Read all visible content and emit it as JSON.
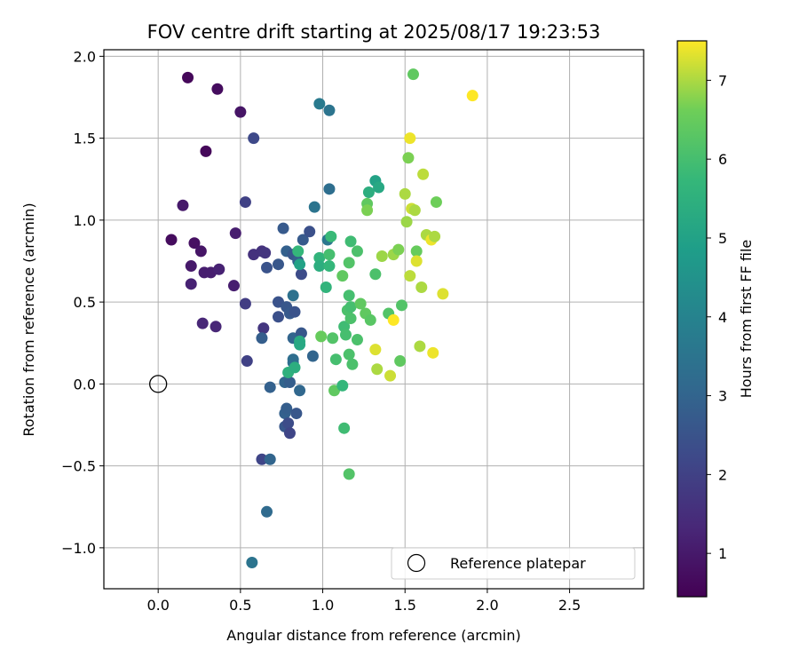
{
  "chart_data": {
    "type": "scatter",
    "title": "FOV centre drift starting at 2025/08/17 19:23:53",
    "xlabel": "Angular distance from reference (arcmin)",
    "ylabel": "Rotation from reference (arcmin)",
    "xlim": [
      -0.33,
      2.95
    ],
    "ylim": [
      -1.25,
      2.04
    ],
    "xticks": [
      0.0,
      0.5,
      1.0,
      1.5,
      2.0,
      2.5
    ],
    "xtick_labels": [
      "0.0",
      "0.5",
      "1.0",
      "1.5",
      "2.0",
      "2.5"
    ],
    "yticks": [
      -1.0,
      -0.5,
      0.0,
      0.5,
      1.0,
      1.5,
      2.0
    ],
    "ytick_labels": [
      "−1.0",
      "−0.5",
      "0.0",
      "0.5",
      "1.0",
      "1.5",
      "2.0"
    ],
    "grid": true,
    "colormap": "viridis",
    "colorbar": {
      "label": "Hours from first FF file",
      "range": [
        0.45,
        7.5
      ],
      "ticks": [
        1,
        2,
        3,
        4,
        5,
        6,
        7
      ],
      "tick_labels": [
        "1",
        "2",
        "3",
        "4",
        "5",
        "6",
        "7"
      ]
    },
    "legend": {
      "placement": "lower-right",
      "entries": [
        "Reference platepar"
      ]
    },
    "reference": {
      "name": "Reference platepar",
      "x": 0.0,
      "y": 0.0,
      "marker": "open-circle"
    },
    "points": [
      {
        "x": 0.18,
        "y": 1.87,
        "c": 0.6
      },
      {
        "x": 0.36,
        "y": 1.8,
        "c": 0.7
      },
      {
        "x": 0.29,
        "y": 1.42,
        "c": 0.6
      },
      {
        "x": 0.5,
        "y": 1.66,
        "c": 0.9
      },
      {
        "x": 0.15,
        "y": 1.09,
        "c": 1.0
      },
      {
        "x": 0.08,
        "y": 0.88,
        "c": 0.7
      },
      {
        "x": 0.22,
        "y": 0.86,
        "c": 0.8
      },
      {
        "x": 0.26,
        "y": 0.81,
        "c": 0.9
      },
      {
        "x": 0.2,
        "y": 0.72,
        "c": 1.0
      },
      {
        "x": 0.28,
        "y": 0.68,
        "c": 1.1
      },
      {
        "x": 0.32,
        "y": 0.68,
        "c": 1.1
      },
      {
        "x": 0.37,
        "y": 0.7,
        "c": 1.2
      },
      {
        "x": 0.2,
        "y": 0.61,
        "c": 1.2
      },
      {
        "x": 0.46,
        "y": 0.6,
        "c": 1.1
      },
      {
        "x": 0.47,
        "y": 0.92,
        "c": 1.1
      },
      {
        "x": 0.27,
        "y": 0.37,
        "c": 1.3
      },
      {
        "x": 0.35,
        "y": 0.35,
        "c": 1.3
      },
      {
        "x": 0.58,
        "y": 1.5,
        "c": 2.2
      },
      {
        "x": 0.53,
        "y": 1.11,
        "c": 2.0
      },
      {
        "x": 0.58,
        "y": 0.79,
        "c": 1.6
      },
      {
        "x": 0.63,
        "y": 0.81,
        "c": 1.6
      },
      {
        "x": 0.65,
        "y": 0.8,
        "c": 1.7
      },
      {
        "x": 0.53,
        "y": 0.49,
        "c": 1.9
      },
      {
        "x": 0.54,
        "y": 0.14,
        "c": 2.0
      },
      {
        "x": 0.64,
        "y": 0.34,
        "c": 1.7
      },
      {
        "x": 0.63,
        "y": 0.28,
        "c": 2.8
      },
      {
        "x": 0.66,
        "y": 0.71,
        "c": 2.5
      },
      {
        "x": 0.73,
        "y": 0.73,
        "c": 2.6
      },
      {
        "x": 0.76,
        "y": 0.95,
        "c": 2.7
      },
      {
        "x": 0.78,
        "y": 0.81,
        "c": 2.9
      },
      {
        "x": 0.82,
        "y": 0.79,
        "c": 2.6
      },
      {
        "x": 0.73,
        "y": 0.5,
        "c": 2.5
      },
      {
        "x": 0.78,
        "y": 0.47,
        "c": 2.6
      },
      {
        "x": 0.8,
        "y": 0.43,
        "c": 2.7
      },
      {
        "x": 0.83,
        "y": 0.44,
        "c": 2.5
      },
      {
        "x": 0.73,
        "y": 0.41,
        "c": 2.4
      },
      {
        "x": 0.82,
        "y": 0.54,
        "c": 3.4
      },
      {
        "x": 0.88,
        "y": 0.88,
        "c": 2.7
      },
      {
        "x": 0.92,
        "y": 0.93,
        "c": 2.4
      },
      {
        "x": 0.87,
        "y": 0.67,
        "c": 2.3
      },
      {
        "x": 0.85,
        "y": 0.75,
        "c": 2.9
      },
      {
        "x": 0.82,
        "y": 0.28,
        "c": 3.0
      },
      {
        "x": 0.87,
        "y": 0.31,
        "c": 2.6
      },
      {
        "x": 0.94,
        "y": 0.17,
        "c": 3.0
      },
      {
        "x": 0.98,
        "y": 1.71,
        "c": 3.7
      },
      {
        "x": 1.04,
        "y": 1.67,
        "c": 3.5
      },
      {
        "x": 0.95,
        "y": 1.08,
        "c": 3.5
      },
      {
        "x": 1.04,
        "y": 1.19,
        "c": 3.3
      },
      {
        "x": 1.03,
        "y": 0.88,
        "c": 3.6
      },
      {
        "x": 1.05,
        "y": 0.9,
        "c": 5.8
      },
      {
        "x": 0.68,
        "y": -0.02,
        "c": 2.9
      },
      {
        "x": 0.77,
        "y": 0.01,
        "c": 3.0
      },
      {
        "x": 0.8,
        "y": 0.01,
        "c": 2.8
      },
      {
        "x": 0.82,
        "y": 0.13,
        "c": 3.3
      },
      {
        "x": 0.82,
        "y": 0.15,
        "c": 3.3
      },
      {
        "x": 0.86,
        "y": -0.04,
        "c": 3.1
      },
      {
        "x": 0.77,
        "y": -0.18,
        "c": 2.9
      },
      {
        "x": 0.78,
        "y": -0.15,
        "c": 2.8
      },
      {
        "x": 0.84,
        "y": -0.18,
        "c": 2.6
      },
      {
        "x": 0.77,
        "y": -0.26,
        "c": 2.6
      },
      {
        "x": 0.79,
        "y": -0.24,
        "c": 2.3
      },
      {
        "x": 0.8,
        "y": -0.3,
        "c": 2.1
      },
      {
        "x": 0.63,
        "y": -0.46,
        "c": 2.1
      },
      {
        "x": 0.68,
        "y": -0.46,
        "c": 3.0
      },
      {
        "x": 0.66,
        "y": -0.78,
        "c": 3.2
      },
      {
        "x": 0.57,
        "y": -1.09,
        "c": 3.5
      },
      {
        "x": 0.79,
        "y": 0.07,
        "c": 5.5
      },
      {
        "x": 0.85,
        "y": 0.81,
        "c": 5.7
      },
      {
        "x": 0.86,
        "y": 0.73,
        "c": 5.0
      },
      {
        "x": 0.86,
        "y": 0.26,
        "c": 5.3
      },
      {
        "x": 0.86,
        "y": 0.24,
        "c": 5.2
      },
      {
        "x": 0.83,
        "y": 0.1,
        "c": 5.4
      },
      {
        "x": 0.98,
        "y": 0.77,
        "c": 5.6
      },
      {
        "x": 0.98,
        "y": 0.72,
        "c": 5.4
      },
      {
        "x": 0.99,
        "y": 0.29,
        "c": 6.5
      },
      {
        "x": 1.02,
        "y": 0.59,
        "c": 5.6
      },
      {
        "x": 1.04,
        "y": 0.79,
        "c": 6.0
      },
      {
        "x": 1.04,
        "y": 0.72,
        "c": 5.7
      },
      {
        "x": 1.06,
        "y": 0.28,
        "c": 6.2
      },
      {
        "x": 1.08,
        "y": 0.15,
        "c": 6.0
      },
      {
        "x": 1.07,
        "y": -0.04,
        "c": 6.4
      },
      {
        "x": 1.12,
        "y": -0.01,
        "c": 5.7
      },
      {
        "x": 1.13,
        "y": 0.35,
        "c": 5.9
      },
      {
        "x": 1.14,
        "y": 0.3,
        "c": 6.0
      },
      {
        "x": 1.15,
        "y": 0.45,
        "c": 6.1
      },
      {
        "x": 1.16,
        "y": 0.54,
        "c": 6.0
      },
      {
        "x": 1.17,
        "y": 0.47,
        "c": 6.0
      },
      {
        "x": 1.16,
        "y": 0.74,
        "c": 6.2
      },
      {
        "x": 1.17,
        "y": 0.87,
        "c": 5.9
      },
      {
        "x": 1.17,
        "y": 0.4,
        "c": 6.1
      },
      {
        "x": 1.16,
        "y": 0.18,
        "c": 6.1
      },
      {
        "x": 1.18,
        "y": 0.12,
        "c": 6.1
      },
      {
        "x": 1.13,
        "y": -0.27,
        "c": 5.9
      },
      {
        "x": 1.16,
        "y": -0.55,
        "c": 6.2
      },
      {
        "x": 1.12,
        "y": 0.66,
        "c": 6.4
      },
      {
        "x": 1.21,
        "y": 0.27,
        "c": 6.1
      },
      {
        "x": 1.21,
        "y": 0.81,
        "c": 6.1
      },
      {
        "x": 1.23,
        "y": 0.49,
        "c": 6.4
      },
      {
        "x": 1.26,
        "y": 0.43,
        "c": 6.4
      },
      {
        "x": 1.29,
        "y": 0.39,
        "c": 6.3
      },
      {
        "x": 1.28,
        "y": 1.17,
        "c": 5.4
      },
      {
        "x": 1.32,
        "y": 1.24,
        "c": 5.0
      },
      {
        "x": 1.34,
        "y": 1.2,
        "c": 5.2
      },
      {
        "x": 1.27,
        "y": 1.1,
        "c": 6.4
      },
      {
        "x": 1.27,
        "y": 1.06,
        "c": 6.7
      },
      {
        "x": 1.32,
        "y": 0.67,
        "c": 6.1
      },
      {
        "x": 1.36,
        "y": 0.78,
        "c": 6.9
      },
      {
        "x": 1.4,
        "y": 0.43,
        "c": 6.2
      },
      {
        "x": 1.43,
        "y": 0.79,
        "c": 6.9
      },
      {
        "x": 1.43,
        "y": 0.39,
        "c": 7.5
      },
      {
        "x": 1.46,
        "y": 0.82,
        "c": 6.7
      },
      {
        "x": 1.32,
        "y": 0.21,
        "c": 7.3
      },
      {
        "x": 1.33,
        "y": 0.09,
        "c": 7.0
      },
      {
        "x": 1.41,
        "y": 0.05,
        "c": 7.2
      },
      {
        "x": 1.47,
        "y": 0.14,
        "c": 6.4
      },
      {
        "x": 1.48,
        "y": 0.48,
        "c": 6.2
      },
      {
        "x": 1.5,
        "y": 1.16,
        "c": 7.0
      },
      {
        "x": 1.51,
        "y": 0.99,
        "c": 6.9
      },
      {
        "x": 1.52,
        "y": 1.38,
        "c": 6.7
      },
      {
        "x": 1.53,
        "y": 1.5,
        "c": 7.4
      },
      {
        "x": 1.54,
        "y": 1.07,
        "c": 7.2
      },
      {
        "x": 1.56,
        "y": 1.06,
        "c": 7.0
      },
      {
        "x": 1.53,
        "y": 0.66,
        "c": 7.1
      },
      {
        "x": 1.55,
        "y": 1.89,
        "c": 6.4
      },
      {
        "x": 1.57,
        "y": 0.81,
        "c": 6.5
      },
      {
        "x": 1.57,
        "y": 0.75,
        "c": 7.3
      },
      {
        "x": 1.59,
        "y": 0.23,
        "c": 7.0
      },
      {
        "x": 1.6,
        "y": 0.59,
        "c": 7.0
      },
      {
        "x": 1.61,
        "y": 1.28,
        "c": 7.1
      },
      {
        "x": 1.63,
        "y": 0.91,
        "c": 7.0
      },
      {
        "x": 1.66,
        "y": 0.88,
        "c": 7.4
      },
      {
        "x": 1.68,
        "y": 0.9,
        "c": 7.0
      },
      {
        "x": 1.69,
        "y": 1.11,
        "c": 6.6
      },
      {
        "x": 1.67,
        "y": 0.19,
        "c": 7.4
      },
      {
        "x": 1.73,
        "y": 0.55,
        "c": 7.3
      },
      {
        "x": 1.91,
        "y": 1.76,
        "c": 7.5
      }
    ]
  }
}
